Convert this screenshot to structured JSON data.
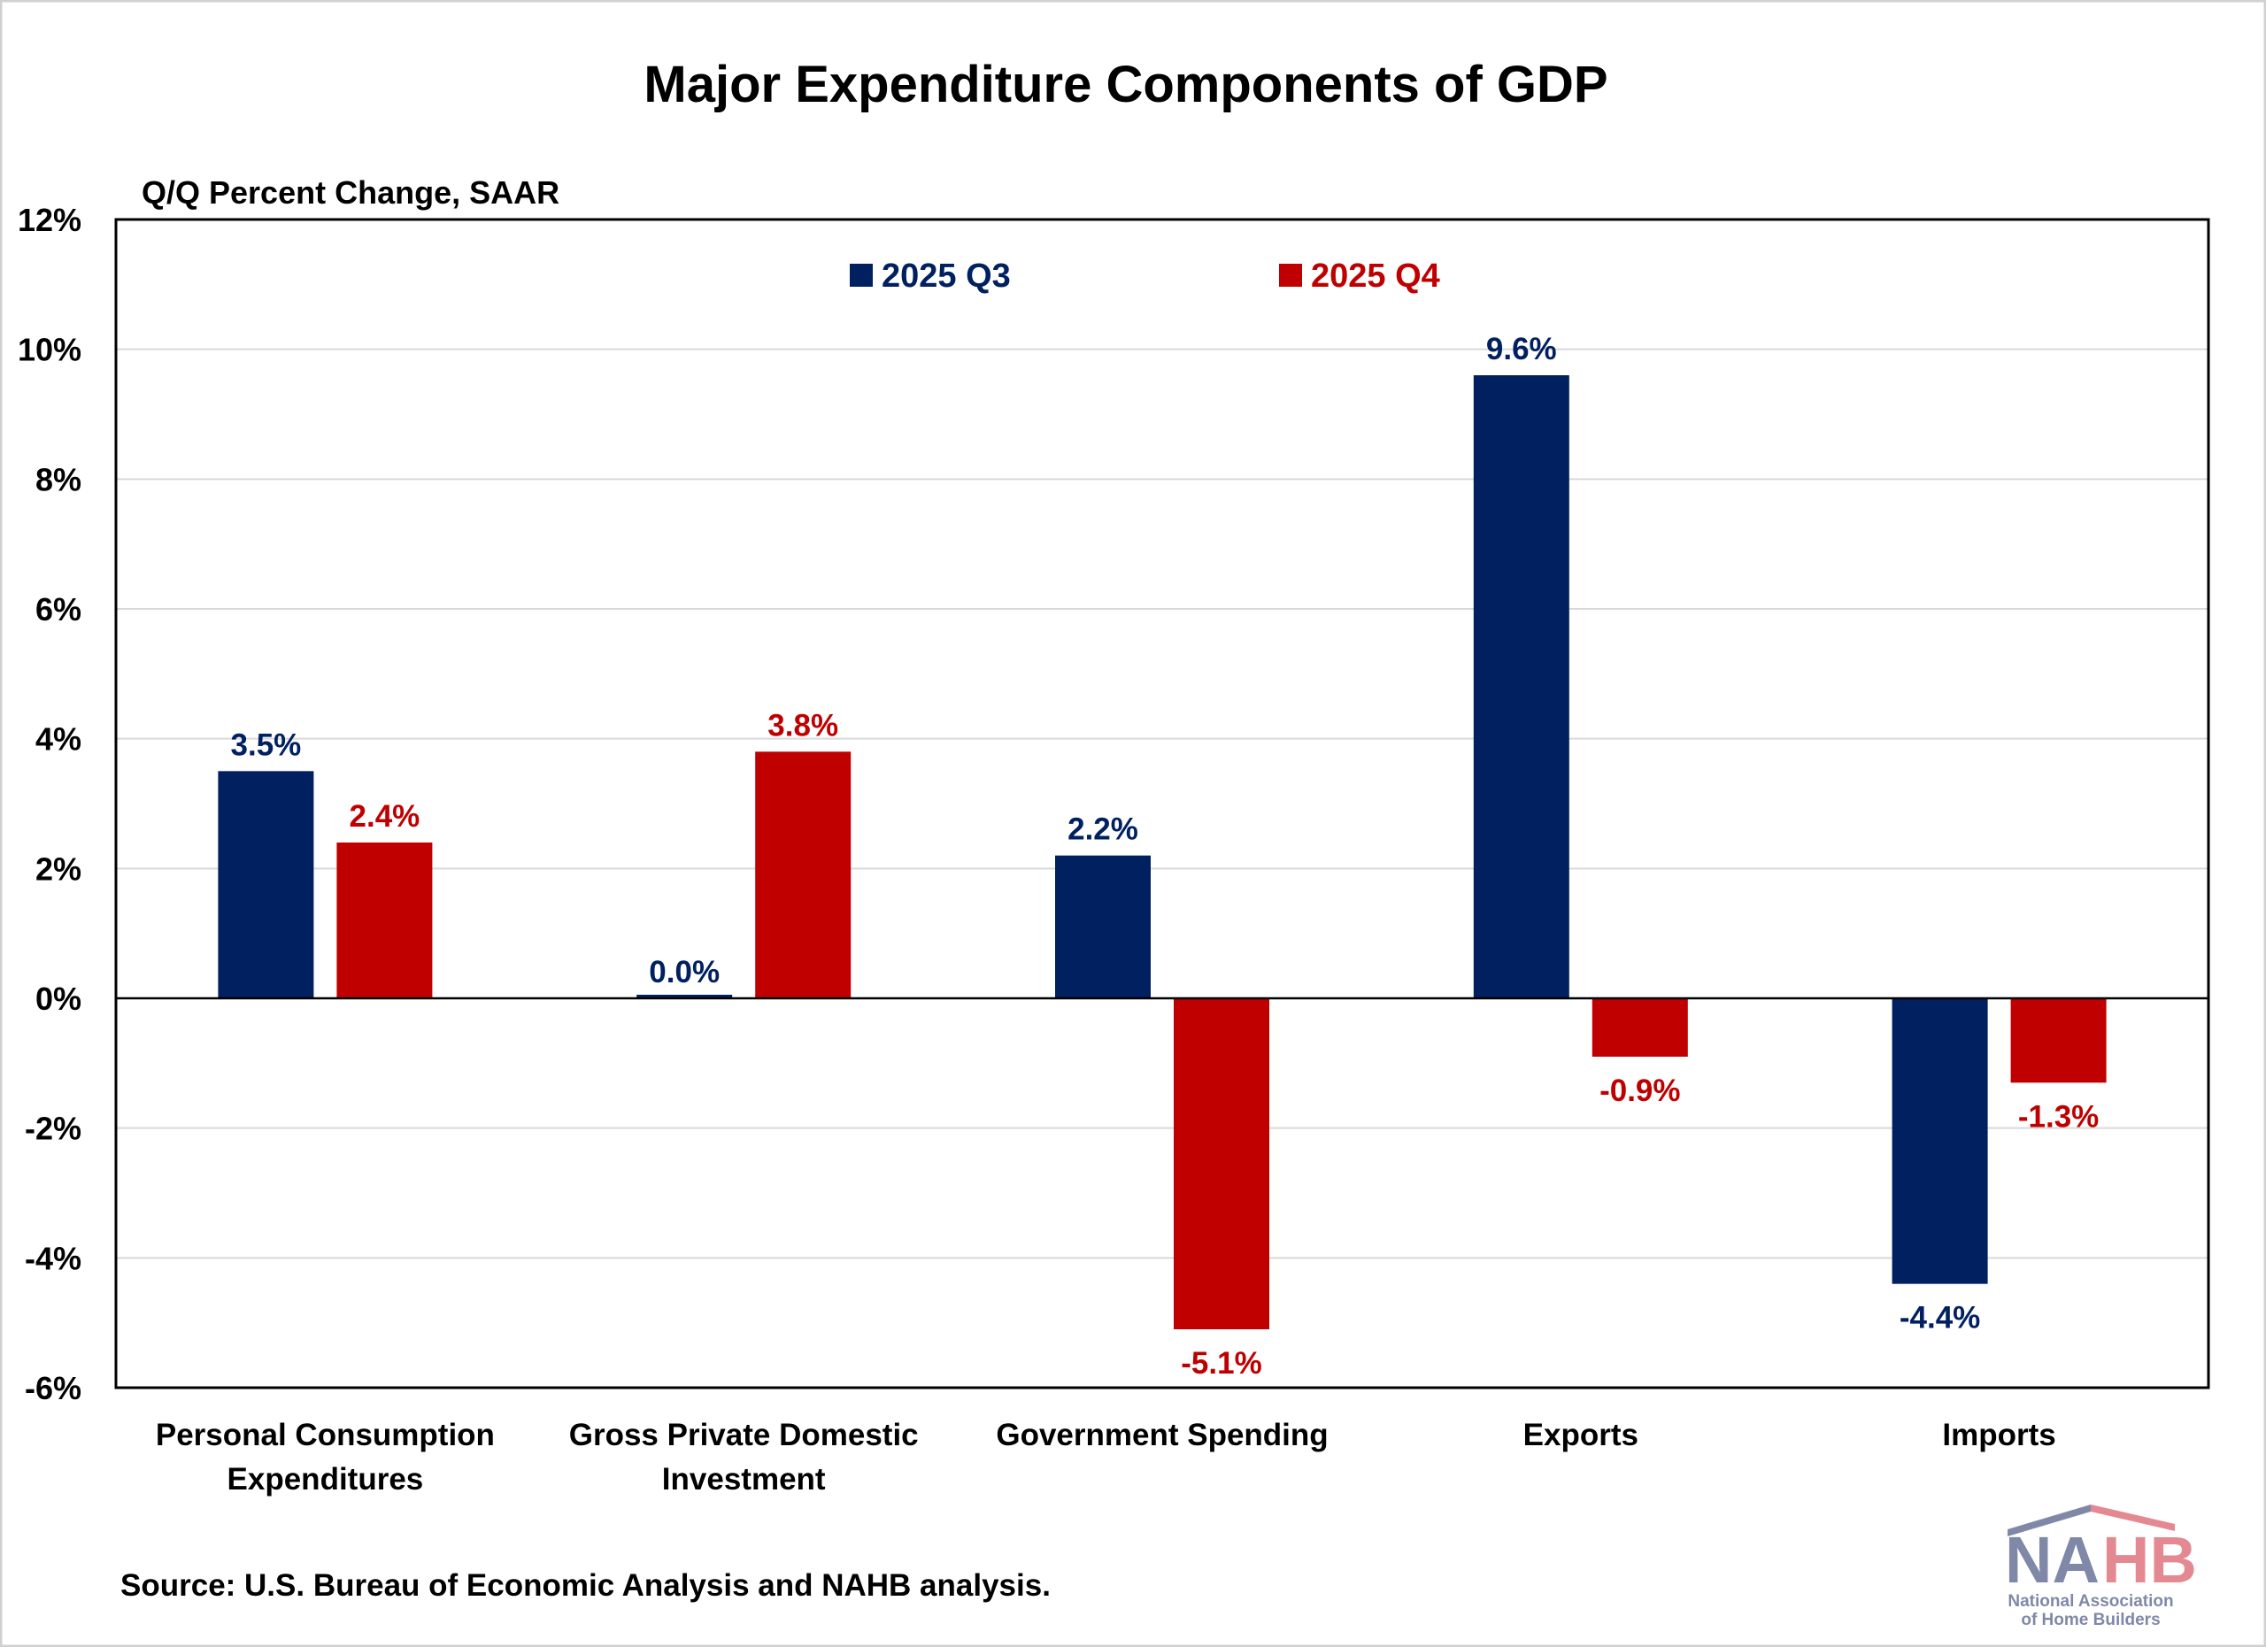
{
  "chart_data": {
    "type": "bar",
    "title": "Major Expenditure Components of GDP",
    "ylabel": "Q/Q Percent Change, SAAR",
    "xlabel": "",
    "categories": [
      [
        "Personal Consumption",
        "Expenditures"
      ],
      [
        "Gross Private Domestic",
        "Investment"
      ],
      [
        "Government Spending"
      ],
      [
        "Exports"
      ],
      [
        "Imports"
      ]
    ],
    "series": [
      {
        "name": "2025 Q3",
        "color": "#002060",
        "values": [
          3.5,
          0.0,
          2.2,
          9.6,
          -4.4
        ],
        "labels": [
          "3.5%",
          "0.0%",
          "2.2%",
          "9.6%",
          "-4.4%"
        ]
      },
      {
        "name": "2025 Q4",
        "color": "#C00000",
        "values": [
          2.4,
          3.8,
          -5.1,
          -0.9,
          -1.3
        ],
        "labels": [
          "2.4%",
          "3.8%",
          "-5.1%",
          "-0.9%",
          "-1.3%"
        ]
      }
    ],
    "ylim": [
      -6,
      12
    ],
    "yticks": [
      12,
      10,
      8,
      6,
      4,
      2,
      0,
      -2,
      -4,
      -6
    ],
    "ytick_labels": [
      "12%",
      "10%",
      "8%",
      "6%",
      "4%",
      "2%",
      "0%",
      "-2%",
      "-4%",
      "-6%"
    ],
    "grid": true,
    "legend": "top-center"
  },
  "source": "Source: U.S. Bureau of Economic Analysis and NAHB analysis.",
  "logo": {
    "text": "NAHB",
    "subtitle": [
      "National Association",
      "of Home Builders"
    ]
  }
}
